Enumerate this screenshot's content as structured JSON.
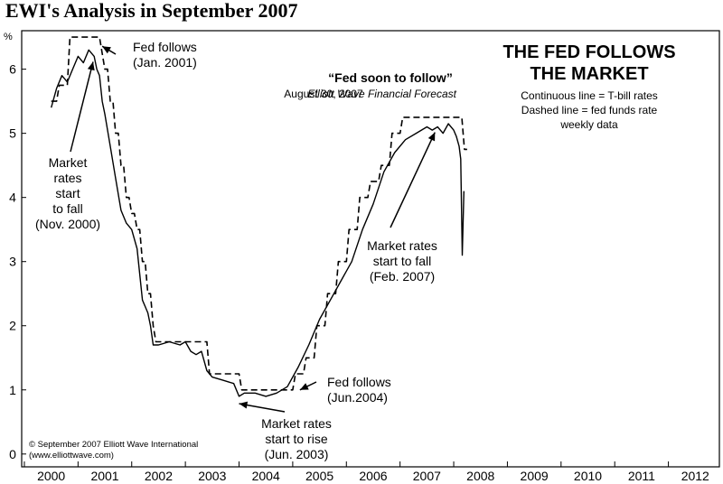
{
  "page_title": "EWI's Analysis in September 2007",
  "headline": [
    "THE FED FOLLOWS",
    "THE MARKET"
  ],
  "legend": [
    "Continuous line = T-bill rates",
    "Dashed line = fed funds rate",
    "weekly data"
  ],
  "forecast_quote": "“Fed soon to follow”",
  "forecast_source": {
    "date": "August 30, 2007",
    "publication": "Elliott Wave Financial Forecast"
  },
  "copyright": [
    "© September 2007 Elliott Wave International",
    "(www.elliottwave.com)"
  ],
  "y_unit": "%",
  "colors": {
    "background": "#ffffff",
    "ink": "#000000"
  },
  "chart_data": {
    "type": "line",
    "title": "THE FED FOLLOWS THE MARKET",
    "xlabel": "",
    "ylabel": "%",
    "xlim": [
      2000,
      2013
    ],
    "ylim": [
      -0.2,
      6.6
    ],
    "x_ticks": [
      2000,
      2001,
      2002,
      2003,
      2004,
      2005,
      2006,
      2007,
      2008,
      2009,
      2010,
      2011,
      2012
    ],
    "y_ticks": [
      0,
      1,
      2,
      3,
      4,
      5,
      6
    ],
    "series": [
      {
        "name": "T-bill rates",
        "style": "solid",
        "x": [
          2000.0,
          2000.1,
          2000.2,
          2000.3,
          2000.4,
          2000.5,
          2000.6,
          2000.7,
          2000.8,
          2000.85,
          2000.9,
          2000.95,
          2001.0,
          2001.1,
          2001.2,
          2001.3,
          2001.4,
          2001.5,
          2001.6,
          2001.7,
          2001.75,
          2001.8,
          2001.85,
          2001.9,
          2002.0,
          2002.2,
          2002.4,
          2002.5,
          2002.6,
          2002.7,
          2002.8,
          2002.9,
          2003.0,
          2003.2,
          2003.4,
          2003.5,
          2003.6,
          2003.8,
          2004.0,
          2004.2,
          2004.4,
          2004.6,
          2004.8,
          2005.0,
          2005.2,
          2005.4,
          2005.6,
          2005.8,
          2006.0,
          2006.2,
          2006.4,
          2006.6,
          2006.8,
          2007.0,
          2007.1,
          2007.2,
          2007.3,
          2007.4,
          2007.5,
          2007.55,
          2007.6,
          2007.63,
          2007.66,
          2007.69
        ],
        "values": [
          5.4,
          5.7,
          5.9,
          5.8,
          6.0,
          6.2,
          6.1,
          6.3,
          6.2,
          6.0,
          5.9,
          5.5,
          5.3,
          4.8,
          4.3,
          3.8,
          3.6,
          3.5,
          3.2,
          2.4,
          2.3,
          2.2,
          2.0,
          1.7,
          1.7,
          1.75,
          1.7,
          1.75,
          1.6,
          1.55,
          1.6,
          1.3,
          1.2,
          1.15,
          1.1,
          0.9,
          0.95,
          0.95,
          0.9,
          0.95,
          1.05,
          1.35,
          1.7,
          2.1,
          2.4,
          2.7,
          3.0,
          3.5,
          3.9,
          4.4,
          4.7,
          4.9,
          5.0,
          5.1,
          5.05,
          5.1,
          5.0,
          5.15,
          5.05,
          4.95,
          4.8,
          4.6,
          3.1,
          4.1
        ]
      },
      {
        "name": "Fed funds rate",
        "style": "dashed",
        "x": [
          2000.0,
          2000.1,
          2000.15,
          2000.3,
          2000.35,
          2000.9,
          2001.0,
          2001.05,
          2001.1,
          2001.15,
          2001.2,
          2001.25,
          2001.3,
          2001.35,
          2001.4,
          2001.45,
          2001.5,
          2001.55,
          2001.6,
          2001.65,
          2001.7,
          2001.75,
          2001.8,
          2001.85,
          2001.9,
          2001.95,
          2002.9,
          2002.95,
          2003.5,
          2003.55,
          2004.5,
          2004.55,
          2004.7,
          2004.75,
          2004.9,
          2004.95,
          2005.1,
          2005.15,
          2005.3,
          2005.35,
          2005.5,
          2005.55,
          2005.7,
          2005.75,
          2005.9,
          2005.95,
          2006.1,
          2006.15,
          2006.3,
          2006.35,
          2006.5,
          2006.55,
          2007.65,
          2007.7,
          2007.75
        ],
        "values": [
          5.5,
          5.5,
          5.75,
          5.75,
          6.5,
          6.5,
          6.0,
          6.0,
          5.5,
          5.5,
          5.0,
          5.0,
          4.5,
          4.5,
          4.0,
          4.0,
          3.75,
          3.75,
          3.5,
          3.5,
          3.0,
          3.0,
          2.5,
          2.5,
          2.0,
          1.75,
          1.75,
          1.25,
          1.25,
          1.0,
          1.0,
          1.25,
          1.25,
          1.5,
          1.5,
          2.0,
          2.0,
          2.5,
          2.5,
          3.0,
          3.0,
          3.5,
          3.5,
          4.0,
          4.0,
          4.25,
          4.25,
          4.5,
          4.5,
          5.0,
          5.0,
          5.25,
          5.25,
          4.75,
          4.75
        ]
      }
    ],
    "annotations": [
      {
        "id": "fed-follows-2001",
        "lines": [
          "Fed follows",
          "(Jan. 2001)"
        ],
        "target_x": 2000.85,
        "target_y": 6.4
      },
      {
        "id": "market-fall-2000",
        "lines": [
          "Market",
          "rates",
          "start",
          "to fall",
          "(Nov. 2000)"
        ],
        "target_x": 2000.78,
        "target_y": 6.2
      },
      {
        "id": "market-fall-2007",
        "lines": [
          "Market rates",
          "start to fall",
          "(Feb. 2007)"
        ],
        "target_x": 2007.15,
        "target_y": 5.1
      },
      {
        "id": "fed-follows-2004",
        "lines": [
          "Fed follows",
          "(Jun.2004)"
        ],
        "target_x": 2004.55,
        "target_y": 1.0
      },
      {
        "id": "market-rise-2003",
        "lines": [
          "Market rates",
          "start to rise",
          "(Jun. 2003)"
        ],
        "target_x": 2003.5,
        "target_y": 0.87
      }
    ]
  }
}
